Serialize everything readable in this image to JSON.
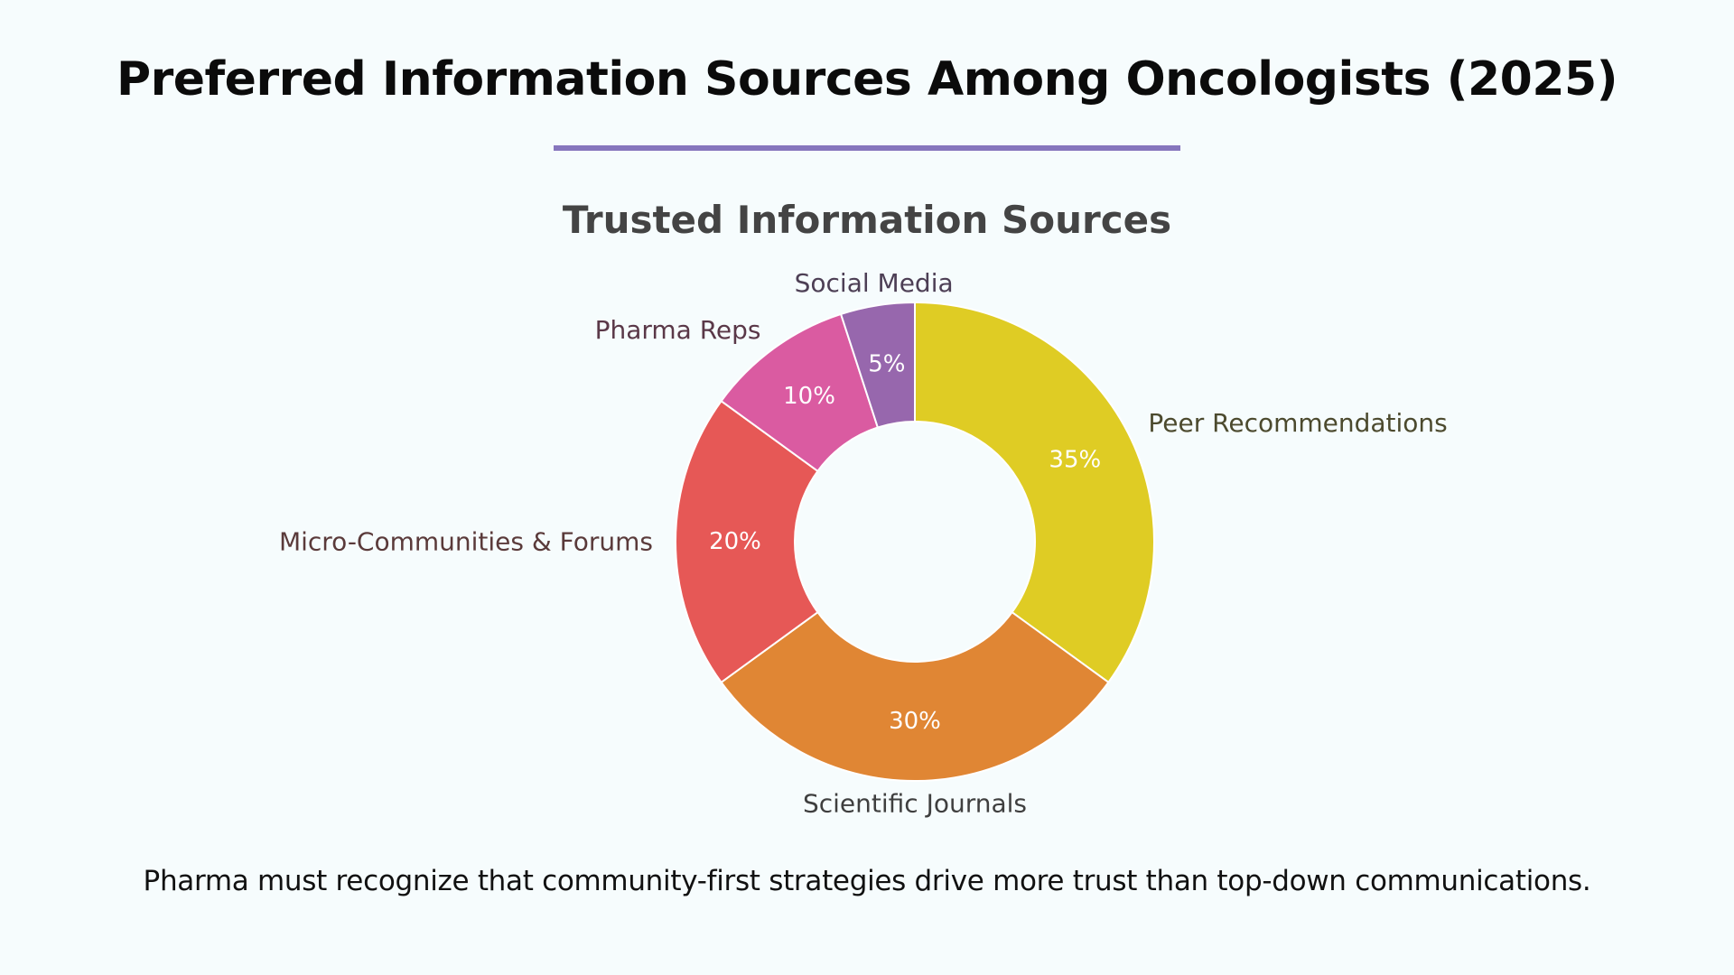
{
  "title": "Preferred Information Sources Among Oncologists (2025)",
  "footer_note": "Pharma must recognize that community-first strategies drive more trust than top-down communications.",
  "colors": {
    "background": "#f6fcfd",
    "accent_line": "#8676bd"
  },
  "chart_data": {
    "type": "pie",
    "variant": "donut",
    "title": "Trusted Information Sources",
    "categories": [
      "Peer Recommendations",
      "Scientific Journals",
      "Micro-Communities & Forums",
      "Pharma Reps",
      "Social Media"
    ],
    "values": [
      35,
      30,
      20,
      10,
      5
    ],
    "data_labels": [
      "35%",
      "30%",
      "20%",
      "10%",
      "5%"
    ],
    "colors": [
      "#dfcc24",
      "#e08634",
      "#e65856",
      "#da5ba1",
      "#9767ad"
    ],
    "label_colors": [
      "#4c4a2e",
      "#3f3f3f",
      "#5a3a3a",
      "#5a3848",
      "#4d3f55"
    ]
  }
}
